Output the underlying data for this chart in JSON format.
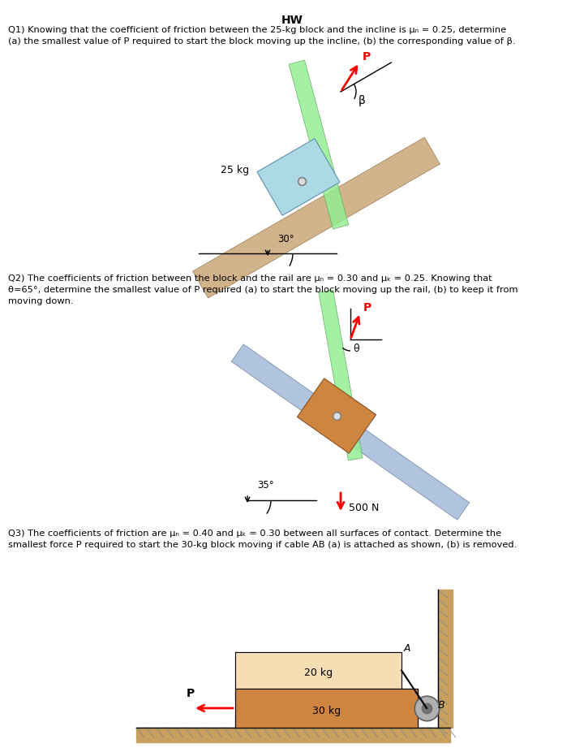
{
  "title": "HW",
  "bg_color": "#ffffff",
  "incline_color": "#d2b48c",
  "block1_color": "#add8e6",
  "rod1_color": "#90ee90",
  "arrow_color": "#ff0000",
  "block2_color": "#cd853f",
  "rail_color": "#b0c4de",
  "rod2_color": "#90ee90",
  "block3_top_color": "#f5deb3",
  "block3_bot_color": "#cd853f",
  "wall_color": "#c8a060",
  "floor_color": "#c8a060",
  "q1_line1": "Q1) Knowing that the coefficient of friction between the 25-kg block and the incline is μₙ = 0.25, determine",
  "q1_line2": "(a) the smallest value of P required to start the block moving up the incline, (b) the corresponding value of β.",
  "q2_line1": "Q2) The coefficients of friction between the block and the rail are μₙ = 0.30 and μₖ = 0.25. Knowing that",
  "q2_line2": "θ=65°, determine the smallest value of P required (a) to start the block moving up the rail, (b) to keep it from",
  "q2_line3": "moving down.",
  "q3_line1": "Q3) The coefficients of friction are μₙ = 0.40 and μₖ = 0.30 between all surfaces of contact. Determine the",
  "q3_line2": "smallest force P required to start the 30-kg block moving if cable AB (a) is attached as shown, (b) is removed."
}
